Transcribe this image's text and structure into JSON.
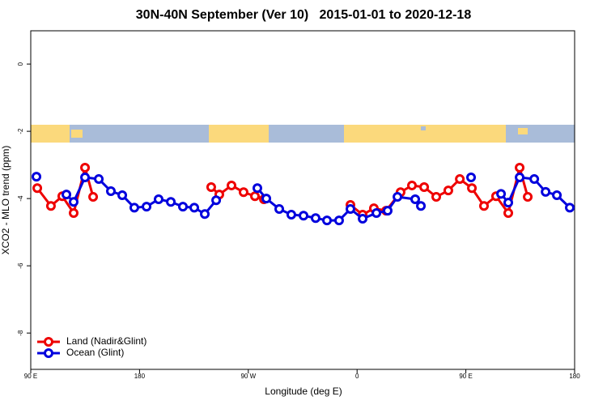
{
  "chart_data": {
    "type": "line",
    "title": "30N-40N September (Ver 10)   2015-01-01 to 2020-12-18",
    "xlabel": "Longitude (deg E)",
    "ylabel": "XCO2 - MLO trend (ppm)",
    "xlim": [
      90,
      540
    ],
    "ylim": [
      -9.08,
      0.99
    ],
    "xticks": [
      {
        "value": 90,
        "label": "90 E"
      },
      {
        "value": 180,
        "label": "180"
      },
      {
        "value": 270,
        "label": "90 W"
      },
      {
        "value": 360,
        "label": "0"
      },
      {
        "value": 450,
        "label": "90 E"
      },
      {
        "value": 540,
        "label": "180"
      }
    ],
    "yticks": [
      0,
      -2,
      -4,
      -6,
      -8
    ],
    "legend": "bottom-left",
    "series": [
      {
        "name": "Land (Nadir&Glint)",
        "color": "#ee0000",
        "x": [
          95.4,
          106.7,
          116.1,
          125.5,
          134.9,
          141.6,
          null,
          239.3,
          246.0,
          256.1,
          266.1,
          275.5,
          282.9,
          null,
          354.5,
          364.6,
          373.9,
          384.0,
          396.0,
          405.4,
          415.5,
          425.5,
          435.5,
          445.0,
          455.0,
          465.0,
          475.0,
          485.1,
          494.5,
          501.2
        ],
        "values": [
          -3.69,
          -4.22,
          -3.93,
          -4.43,
          -3.08,
          -3.95,
          null,
          -3.66,
          -3.88,
          -3.61,
          -3.81,
          -3.93,
          -4.02,
          null,
          -4.19,
          -4.48,
          -4.29,
          -4.36,
          -3.81,
          -3.61,
          -3.66,
          -3.95,
          -3.76,
          -3.42,
          -3.69,
          -4.22,
          -3.93,
          -4.43,
          -3.08,
          -3.95
        ]
      },
      {
        "name": "Ocean (Glint)",
        "color": "#0000dd",
        "x": [
          94.7,
          null,
          119.5,
          125.5,
          134.9,
          146.3,
          156.3,
          165.7,
          175.7,
          185.8,
          195.8,
          205.9,
          215.9,
          225.3,
          234.0,
          243.4,
          null,
          277.5,
          284.9,
          295.6,
          305.6,
          315.7,
          325.7,
          335.1,
          345.1,
          354.5,
          364.6,
          376.0,
          385.3,
          393.4,
          408.1,
          412.8,
          null,
          454.3,
          null,
          479.1,
          485.1,
          494.5,
          506.6,
          516.0,
          525.3,
          536.0
        ],
        "values": [
          -3.35,
          null,
          -3.88,
          -4.1,
          -3.37,
          -3.42,
          -3.78,
          -3.9,
          -4.27,
          -4.24,
          -4.02,
          -4.1,
          -4.24,
          -4.27,
          -4.46,
          -4.05,
          null,
          -3.69,
          -4.0,
          -4.31,
          -4.48,
          -4.51,
          -4.58,
          -4.65,
          -4.65,
          -4.31,
          -4.6,
          -4.43,
          -4.36,
          -3.95,
          -4.02,
          -4.22,
          null,
          -3.37,
          null,
          -3.86,
          -4.12,
          -3.37,
          -3.42,
          -3.8,
          -3.9,
          -4.27
        ]
      }
    ]
  }
}
